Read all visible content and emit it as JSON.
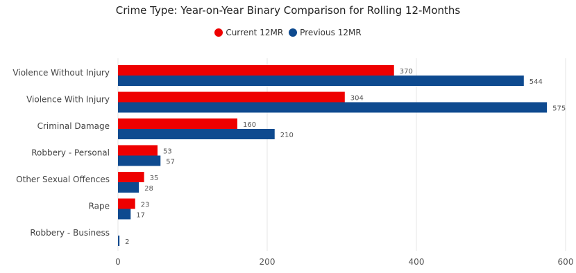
{
  "chart_data": {
    "type": "bar",
    "orientation": "horizontal",
    "title": "Crime Type: Year-on-Year Binary Comparison for Rolling 12-Months",
    "categories": [
      "Violence Without Injury",
      "Violence With Injury",
      "Criminal Damage",
      "Robbery - Personal",
      "Other Sexual Offences",
      "Rape",
      "Robbery - Business"
    ],
    "series": [
      {
        "name": "Current 12MR",
        "color": "#ee0000",
        "values": [
          370,
          304,
          160,
          53,
          35,
          23,
          0
        ]
      },
      {
        "name": "Previous 12MR",
        "color": "#0e4a8f",
        "values": [
          544,
          575,
          210,
          57,
          28,
          17,
          2
        ]
      }
    ],
    "value_labels": [
      [
        "370",
        "304",
        "160",
        "53",
        "35",
        "23",
        ""
      ],
      [
        "544",
        "575",
        "210",
        "57",
        "28",
        "17",
        "2"
      ]
    ],
    "xlim": [
      0,
      600
    ],
    "xticks": [
      0,
      200,
      400,
      600
    ],
    "xtick_labels": [
      "0",
      "200",
      "400",
      "600"
    ],
    "grid": true,
    "legend_position": "top-center"
  }
}
